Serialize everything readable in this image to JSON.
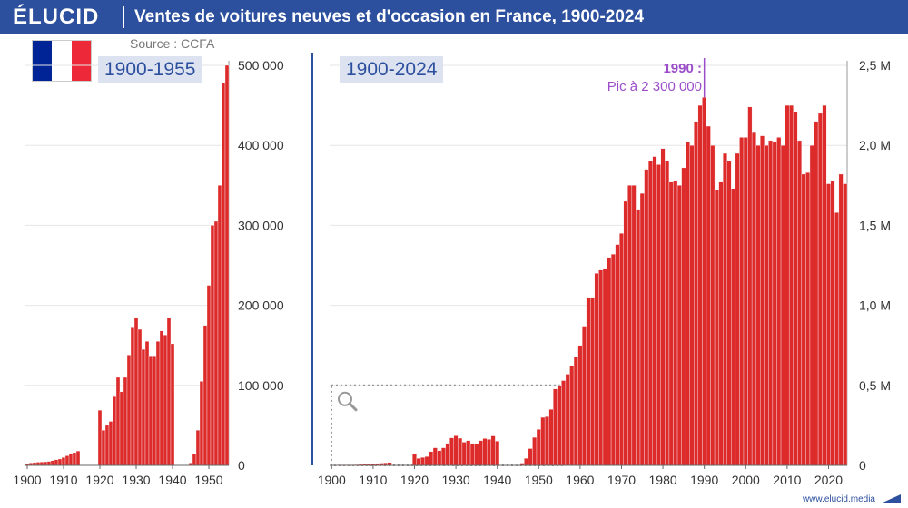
{
  "header": {
    "logo": "ÉLUCID",
    "title": "Ventes de voitures neuves et d'occasion en France, 1900-2024"
  },
  "source": "Source : CCFA",
  "flag_colors": [
    "#002395",
    "#ffffff",
    "#ed2939"
  ],
  "badges": {
    "left": "1900-1955",
    "right": "1900-2024"
  },
  "annotation": {
    "line1": "1990 :",
    "line2": "Pic à 2 300 000"
  },
  "footer": "www.elucid.media",
  "colors": {
    "brand": "#2c4f9e",
    "bar": "#dd2b2b",
    "annotation": "#9b4dca",
    "badge_bg": "#dde2f0"
  },
  "chart_data": [
    {
      "type": "bar",
      "title": "1900-1955",
      "x_range": [
        1900,
        1955
      ],
      "ylim": [
        0,
        500000
      ],
      "ytick_labels": [
        "0",
        "100 000",
        "200 000",
        "300 000",
        "400 000",
        "500 000"
      ],
      "xtick_labels": [
        "1900",
        "1910",
        "1920",
        "1930",
        "1940",
        "1950"
      ],
      "grid": true,
      "x": [
        1900,
        1901,
        1902,
        1903,
        1904,
        1905,
        1906,
        1907,
        1908,
        1909,
        1910,
        1911,
        1912,
        1913,
        1914,
        1915,
        1916,
        1917,
        1918,
        1919,
        1920,
        1921,
        1922,
        1923,
        1924,
        1925,
        1926,
        1927,
        1928,
        1929,
        1930,
        1931,
        1932,
        1933,
        1934,
        1935,
        1936,
        1937,
        1938,
        1939,
        1940,
        1941,
        1942,
        1943,
        1944,
        1945,
        1946,
        1947,
        1948,
        1949,
        1950,
        1951,
        1952,
        1953,
        1954,
        1955
      ],
      "values": [
        2000,
        3000,
        3500,
        4000,
        4200,
        4500,
        5000,
        6000,
        7000,
        8000,
        10000,
        12000,
        14000,
        16000,
        18000,
        0,
        0,
        0,
        0,
        0,
        69000,
        44000,
        50000,
        55000,
        86000,
        110000,
        92000,
        110000,
        138000,
        172000,
        185000,
        170000,
        145000,
        155000,
        137000,
        137000,
        155000,
        168000,
        163000,
        184000,
        152000,
        0,
        0,
        0,
        0,
        3000,
        14000,
        44000,
        105000,
        175000,
        225000,
        300000,
        305000,
        350000,
        478000,
        500000
      ]
    },
    {
      "type": "bar",
      "title": "1900-2024",
      "x_range": [
        1900,
        2024
      ],
      "ylim": [
        0,
        2500000
      ],
      "ytick_labels": [
        "0",
        "0,5 M",
        "1,0 M",
        "1,5 M",
        "2,0 M",
        "2,5 M"
      ],
      "xtick_labels": [
        "1900",
        "1910",
        "1920",
        "1930",
        "1940",
        "1950",
        "1960",
        "1970",
        "1980",
        "1990",
        "2000",
        "2010",
        "2020"
      ],
      "grid": true,
      "annotation": {
        "x": 1990,
        "y": 2300000
      },
      "x": [
        1956,
        1957,
        1958,
        1959,
        1960,
        1961,
        1962,
        1963,
        1964,
        1965,
        1966,
        1967,
        1968,
        1969,
        1970,
        1971,
        1972,
        1973,
        1974,
        1975,
        1976,
        1977,
        1978,
        1979,
        1980,
        1981,
        1982,
        1983,
        1984,
        1985,
        1986,
        1987,
        1988,
        1989,
        1990,
        1991,
        1992,
        1993,
        1994,
        1995,
        1996,
        1997,
        1998,
        1999,
        2000,
        2001,
        2002,
        2003,
        2004,
        2005,
        2006,
        2007,
        2008,
        2009,
        2010,
        2011,
        2012,
        2013,
        2014,
        2015,
        2016,
        2017,
        2018,
        2019,
        2020,
        2021,
        2022,
        2023,
        2024
      ],
      "values": [
        530000,
        570000,
        620000,
        680000,
        750000,
        870000,
        1050000,
        1050000,
        1200000,
        1220000,
        1230000,
        1300000,
        1320000,
        1380000,
        1450000,
        1650000,
        1750000,
        1750000,
        1600000,
        1700000,
        1850000,
        1900000,
        1930000,
        1880000,
        1980000,
        1900000,
        1770000,
        1780000,
        1750000,
        1860000,
        2020000,
        2000000,
        2150000,
        2250000,
        2300000,
        2120000,
        2000000,
        1720000,
        1770000,
        1950000,
        1900000,
        1730000,
        1950000,
        2050000,
        2050000,
        2240000,
        2080000,
        2000000,
        2060000,
        2000000,
        2030000,
        2020000,
        2050000,
        2000000,
        2250000,
        2250000,
        2210000,
        2030000,
        1820000,
        1830000,
        2000000,
        2150000,
        2200000,
        2250000,
        1760000,
        1780000,
        1580000,
        1820000,
        1760000
      ]
    }
  ]
}
